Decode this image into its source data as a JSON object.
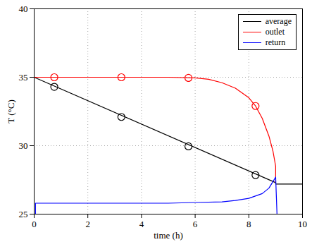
{
  "chart_data": {
    "type": "line",
    "xlabel": "time (h)",
    "ylabel": "T (°C)",
    "xlim": [
      0,
      10
    ],
    "ylim": [
      25,
      40
    ],
    "xticks": [
      0,
      2,
      4,
      6,
      8,
      10
    ],
    "yticks": [
      25,
      30,
      35,
      40
    ],
    "grid": true,
    "legend": "upper right",
    "series": [
      {
        "name": "average",
        "color": "#000000",
        "x": [
          0,
          9,
          9,
          10
        ],
        "values": [
          35,
          27.3,
          27.2,
          27.2
        ],
        "marker": "circle",
        "markers": {
          "x": [
            0.75,
            3.25,
            5.75,
            8.25
          ],
          "values": [
            34.3,
            32.1,
            29.95,
            27.85
          ]
        }
      },
      {
        "name": "outlet",
        "color": "#ff0000",
        "x": [
          0,
          5,
          6,
          6.5,
          7,
          7.5,
          8,
          8.25,
          8.5,
          8.75,
          8.9,
          9,
          9
        ],
        "values": [
          35,
          35,
          34.95,
          34.85,
          34.6,
          34.2,
          33.5,
          32.9,
          32,
          30.7,
          29.6,
          28.5,
          27.3
        ],
        "marker": "circle",
        "markers": {
          "x": [
            0.75,
            3.25,
            5.75,
            8.25
          ],
          "values": [
            35,
            35,
            34.95,
            32.9
          ]
        }
      },
      {
        "name": "return",
        "color": "#0000ff",
        "x": [
          0,
          0.05,
          0.05,
          5,
          6,
          7,
          7.5,
          8,
          8.5,
          8.75,
          9,
          9.05,
          10
        ],
        "values": [
          25,
          25,
          25.8,
          25.8,
          25.85,
          25.9,
          26,
          26.15,
          26.5,
          26.9,
          27.7,
          25,
          25
        ]
      }
    ]
  }
}
